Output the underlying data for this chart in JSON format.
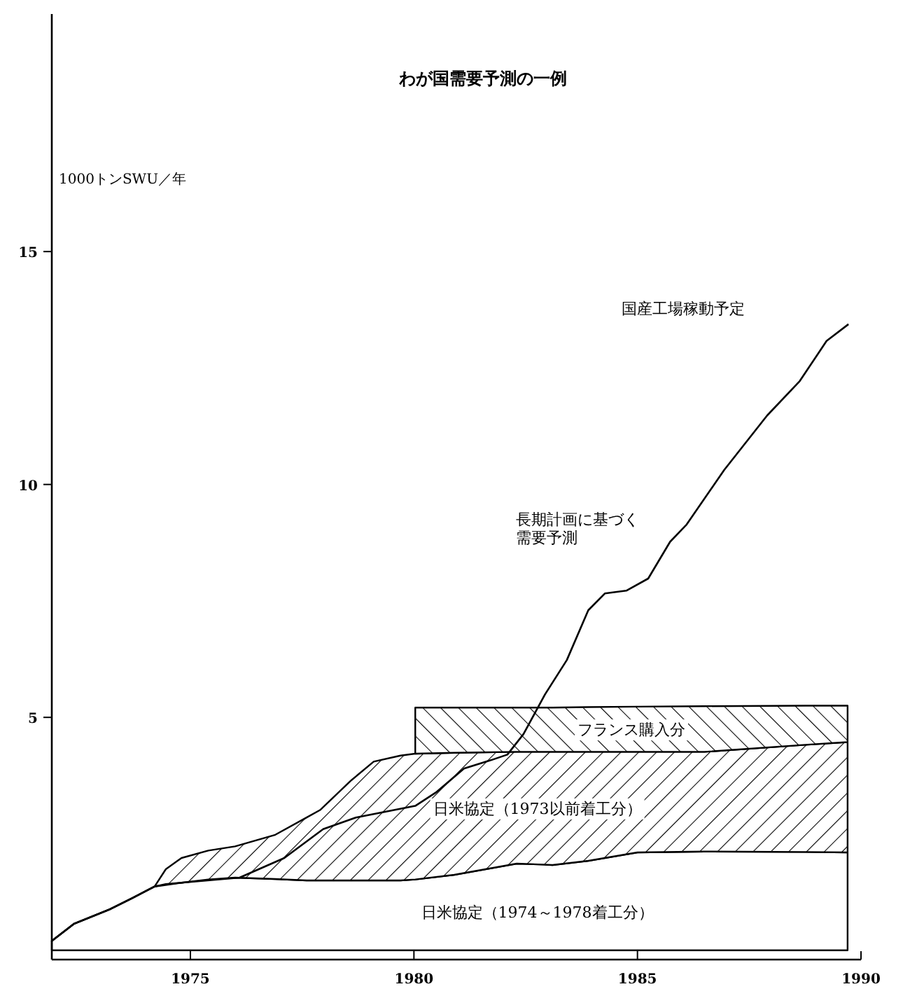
{
  "chart_data": {
    "type": "area",
    "stacked": true,
    "title": "わが国需要予測の一例",
    "ylabel": "1000トンSWU／年",
    "annotations": [
      "国産工場稼動予定"
    ],
    "xlim": [
      1971.9,
      1990
    ],
    "ylim": [
      -0.2,
      20.1
    ],
    "xticks": [
      1975,
      1980,
      1985,
      1990
    ],
    "yticks": [
      5,
      10,
      15
    ],
    "x": [
      1971.9,
      1972.4,
      1973.2,
      1973.7,
      1974.2,
      1974.45,
      1974.8,
      1975.4,
      1976.0,
      1976.9,
      1977.6,
      1977.9,
      1978.6,
      1979.1,
      1979.7,
      1980.03,
      1980.9,
      1982.3,
      1982.9,
      1983.1,
      1983.9,
      1985.0,
      1986.5,
      1988.75,
      1989.7
    ],
    "series": [
      {
        "name": "日米協定（1974～1978着工分）",
        "color": "#000000",
        "values": [
          0.2,
          0.57,
          0.88,
          1.12,
          1.37,
          1.42,
          1.45,
          1.52,
          1.56,
          1.53,
          1.5,
          1.5,
          1.5,
          1.5,
          1.5,
          1.52,
          1.62,
          1.86,
          1.84,
          1.83,
          1.92,
          2.1,
          2.12,
          2.11,
          2.1
        ]
      },
      {
        "name": "日米協定（1973以前着工分）",
        "color": "#000000",
        "values": [
          0,
          0,
          0,
          0,
          0,
          0.32,
          0.53,
          0.62,
          0.67,
          0.95,
          1.35,
          1.51,
          2.15,
          2.55,
          2.68,
          2.7,
          2.62,
          2.4,
          2.42,
          2.43,
          2.34,
          2.16,
          2.14,
          2.3,
          2.37
        ]
      },
      {
        "name": "フランス購入分",
        "color": "#000000",
        "values": [
          null,
          null,
          null,
          null,
          null,
          null,
          null,
          null,
          null,
          null,
          null,
          null,
          null,
          null,
          null,
          0.99,
          0.97,
          0.95,
          0.95,
          0.95,
          0.96,
          0.97,
          0.98,
          0.84,
          0.78
        ]
      },
      {
        "name": "長期計画に基づく需要予測",
        "type": "line",
        "color": "#000000",
        "x": [
          1971.9,
          1972.4,
          1973.2,
          1973.7,
          1974.2,
          1974.8,
          1976.1,
          1977.1,
          1977.97,
          1978.7,
          1980.03,
          1980.51,
          1981.12,
          1981.72,
          1982.09,
          1982.45,
          1982.93,
          1983.42,
          1983.9,
          1984.27,
          1984.75,
          1985.24,
          1985.73,
          1986.1,
          1986.94,
          1987.9,
          1988.63,
          1989.23,
          1989.72
        ],
        "values": [
          0.2,
          0.57,
          0.88,
          1.12,
          1.37,
          1.45,
          1.56,
          1.98,
          2.6,
          2.85,
          3.1,
          3.4,
          3.9,
          4.08,
          4.2,
          4.64,
          5.49,
          6.23,
          7.3,
          7.66,
          7.72,
          7.98,
          8.77,
          9.14,
          10.31,
          11.48,
          12.22,
          13.08,
          13.44
        ]
      }
    ]
  }
}
